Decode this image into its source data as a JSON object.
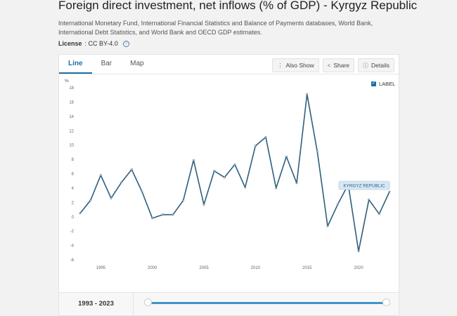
{
  "page": {
    "title": "Foreign direct investment, net inflows (% of GDP) - Kyrgyz Republic",
    "source": "International Monetary Fund, International Financial Statistics and Balance of Payments databases, World Bank, International Debt Statistics, and World Bank and OECD GDP estimates.",
    "license_label": "License",
    "license_value": ": CC BY-4.0"
  },
  "tabs": [
    {
      "label": "Line",
      "active": true
    },
    {
      "label": "Bar",
      "active": false
    },
    {
      "label": "Map",
      "active": false
    }
  ],
  "actions": {
    "also_show": "Also Show",
    "share": "Share",
    "details": "Details"
  },
  "label_toggle": {
    "label": "LABEL",
    "checked": true
  },
  "range": {
    "label": "1993 - 2023",
    "start": 1993,
    "end": 2023
  },
  "colors": {
    "line": "#2f5e7d",
    "accent": "#1d6fa5",
    "slider": "#3f94c9"
  },
  "chart_data": {
    "type": "line",
    "title": "",
    "ylabel": "%",
    "xlabel": "",
    "ylim": [
      -6,
      18
    ],
    "yticks": [
      -6,
      -4,
      -2,
      0,
      2,
      4,
      6,
      8,
      10,
      12,
      14,
      16,
      18
    ],
    "xticks": [
      1995,
      2000,
      2005,
      2010,
      2015,
      2020
    ],
    "grid": false,
    "series": [
      {
        "name": "KYRGYZ REPUBLIC",
        "x": [
          1993,
          1994,
          1995,
          1996,
          1997,
          1998,
          1999,
          2000,
          2001,
          2002,
          2003,
          2004,
          2005,
          2006,
          2007,
          2008,
          2009,
          2010,
          2011,
          2012,
          2013,
          2014,
          2015,
          2016,
          2017,
          2018,
          2019,
          2020,
          2021,
          2022,
          2023
        ],
        "values": [
          0.5,
          2.3,
          5.8,
          2.6,
          4.8,
          6.6,
          3.5,
          -0.2,
          0.3,
          0.3,
          2.3,
          7.9,
          1.7,
          6.4,
          5.5,
          7.3,
          4.1,
          9.9,
          11.1,
          4.0,
          8.4,
          4.7,
          17.1,
          9.1,
          -1.3,
          1.8,
          4.5,
          -4.8,
          2.4,
          0.4,
          3.5
        ]
      }
    ]
  }
}
